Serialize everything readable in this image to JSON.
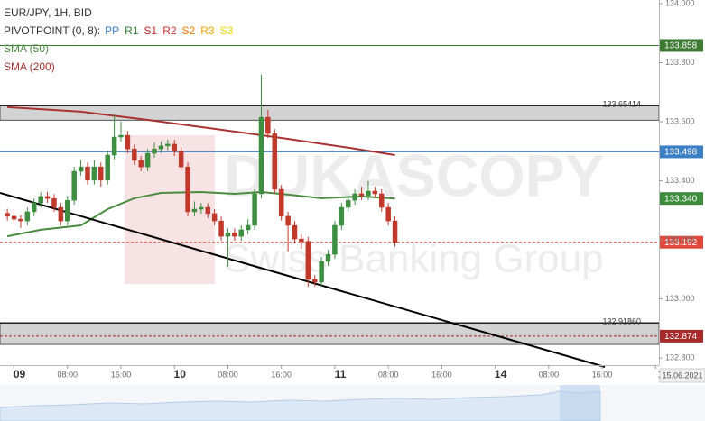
{
  "chart_data": {
    "type": "candlestick",
    "title": "EUR/JPY, 1H, BID",
    "indicator_label": "PIVOTPOINT (0, 8):",
    "pivot_legend": [
      {
        "name": "PP",
        "color": "#3b7fd4"
      },
      {
        "name": "R1",
        "color": "#2e7d32"
      },
      {
        "name": "S1",
        "color": "#c62828"
      },
      {
        "name": "R2",
        "color": "#d32f2f"
      },
      {
        "name": "S2",
        "color": "#ef7d00"
      },
      {
        "name": "R3",
        "color": "#f0a500"
      },
      {
        "name": "S3",
        "color": "#f2d600"
      }
    ],
    "watermark": [
      "DUKASCOPY",
      "Swiss Banking Group"
    ],
    "up_color": "#3e8e41",
    "down_color": "#c0392b",
    "x": [
      -1,
      0,
      1,
      2,
      3,
      4,
      5,
      6,
      7,
      8,
      9,
      10,
      11,
      12,
      13,
      14,
      15,
      16,
      17,
      18,
      19,
      20,
      21,
      22,
      23,
      24,
      25,
      26,
      27,
      28,
      29,
      30,
      31,
      32,
      33,
      34,
      35,
      36,
      37,
      38,
      39,
      40,
      41,
      42,
      43,
      44,
      45,
      46,
      47,
      48,
      49,
      50,
      51,
      52,
      53,
      54,
      55,
      56,
      57
    ],
    "open": [
      133.29,
      133.28,
      133.27,
      133.264,
      133.295,
      133.325,
      133.347,
      133.34,
      133.31,
      133.264,
      133.334,
      133.432,
      133.447,
      133.402,
      133.447,
      133.402,
      133.487,
      133.548,
      133.554,
      133.508,
      133.469,
      133.447,
      133.493,
      133.508,
      133.518,
      133.524,
      133.499,
      133.447,
      133.295,
      133.304,
      133.31,
      133.289,
      133.264,
      133.212,
      133.224,
      133.212,
      133.234,
      133.249,
      133.356,
      133.615,
      133.56,
      133.371,
      133.28,
      133.249,
      133.203,
      133.195,
      133.066,
      133.057,
      133.127,
      133.151,
      133.249,
      133.31,
      133.334,
      133.356,
      133.35,
      133.365,
      133.356,
      133.31,
      133.264
    ],
    "high": [
      133.305,
      133.295,
      133.285,
      133.31,
      133.34,
      133.362,
      133.362,
      133.355,
      133.325,
      133.349,
      133.447,
      133.47,
      133.462,
      133.47,
      133.462,
      133.502,
      133.621,
      133.6,
      133.569,
      133.523,
      133.484,
      133.508,
      133.53,
      133.533,
      133.539,
      133.539,
      133.514,
      133.462,
      133.33,
      133.325,
      133.325,
      133.304,
      133.279,
      133.239,
      133.239,
      133.249,
      133.27,
      133.371,
      133.759,
      133.64,
      133.575,
      133.386,
      133.295,
      133.264,
      133.218,
      133.21,
      133.081,
      133.142,
      133.166,
      133.264,
      133.325,
      133.349,
      133.371,
      133.38,
      133.4,
      133.38,
      133.371,
      133.325,
      133.279
    ],
    "low": [
      133.265,
      133.255,
      133.24,
      133.249,
      133.28,
      133.31,
      133.325,
      133.295,
      133.249,
      133.249,
      133.319,
      133.417,
      133.387,
      133.387,
      133.38,
      133.387,
      133.472,
      133.533,
      133.493,
      133.454,
      133.432,
      133.432,
      133.478,
      133.493,
      133.503,
      133.484,
      133.432,
      133.28,
      133.28,
      133.289,
      133.274,
      133.249,
      133.197,
      133.11,
      133.197,
      133.197,
      133.219,
      133.234,
      133.341,
      133.545,
      133.356,
      133.265,
      133.16,
      133.188,
      133.17,
      133.041,
      133.042,
      133.042,
      133.112,
      133.136,
      133.234,
      133.295,
      133.319,
      133.335,
      133.335,
      133.341,
      133.295,
      133.249,
      133.177
    ],
    "close": [
      133.28,
      133.27,
      133.264,
      133.295,
      133.325,
      133.347,
      133.34,
      133.31,
      133.264,
      133.334,
      133.432,
      133.447,
      133.402,
      133.447,
      133.402,
      133.487,
      133.548,
      133.554,
      133.508,
      133.469,
      133.447,
      133.493,
      133.508,
      133.518,
      133.524,
      133.499,
      133.447,
      133.295,
      133.304,
      133.31,
      133.289,
      133.264,
      133.212,
      133.224,
      133.212,
      133.234,
      133.249,
      133.356,
      133.615,
      133.56,
      133.371,
      133.28,
      133.249,
      133.203,
      133.195,
      133.066,
      133.057,
      133.127,
      133.151,
      133.249,
      133.31,
      133.334,
      133.356,
      133.35,
      133.365,
      133.356,
      133.31,
      133.264,
      133.192
    ],
    "series": [
      {
        "name": "SMA (50)",
        "color": "#4a8c3f",
        "x": [
          -1,
          4,
          10,
          14,
          18,
          22,
          28,
          33,
          37,
          41,
          46,
          52,
          57
        ],
        "values": [
          133.212,
          133.234,
          133.249,
          133.304,
          133.341,
          133.359,
          133.362,
          133.356,
          133.362,
          133.353,
          133.341,
          133.347,
          133.34
        ]
      },
      {
        "name": "SMA (200)",
        "color": "#a83232",
        "x": [
          -1,
          10,
          20,
          30,
          40,
          50,
          57
        ],
        "values": [
          133.649,
          133.634,
          133.606,
          133.576,
          133.545,
          133.512,
          133.487
        ]
      }
    ],
    "trendline": {
      "color": "#000000",
      "x": [
        -2.1,
        88.4
      ],
      "values": [
        133.359,
        132.77
      ]
    },
    "levels": [
      {
        "value": 133.858,
        "label": "133.858",
        "color": "#3d7a32",
        "style": "solid",
        "label_at": "axis"
      },
      {
        "value": 133.65414,
        "label": "133.65414",
        "color": "#222222",
        "style": "solid",
        "label_at": "inside",
        "band_to": 133.605
      },
      {
        "value": 133.498,
        "label": "133.498",
        "color": "#3b7fc4",
        "style": "solid",
        "label_at": "axis"
      },
      {
        "value": 133.34,
        "label": "133.340",
        "color": "#3d8b3d",
        "style": "none",
        "label_at": "axis"
      },
      {
        "value": 133.192,
        "label": "133.192",
        "color": "#e0483c",
        "style": "dashed",
        "label_at": "axis"
      },
      {
        "value": 132.9186,
        "label": "132.91860",
        "color": "#222222",
        "style": "solid",
        "label_at": "inside",
        "band_to": 132.846
      },
      {
        "value": 132.874,
        "label": "132.874",
        "color": "#a52a2a",
        "style": "dashed",
        "label_at": "axis"
      }
    ],
    "xlim": [
      -2.1,
      96.5
    ],
    "xticks": [
      {
        "value": 0,
        "label": "09"
      },
      {
        "value": 8,
        "label": "08:00"
      },
      {
        "value": 16,
        "label": "16:00"
      },
      {
        "value": 24,
        "label": "10"
      },
      {
        "value": 32,
        "label": "08:00"
      },
      {
        "value": 40,
        "label": "16:00"
      },
      {
        "value": 48,
        "label": "11"
      },
      {
        "value": 56,
        "label": "08:00"
      },
      {
        "value": 64,
        "label": "16:00"
      },
      {
        "value": 72,
        "label": "14"
      },
      {
        "value": 80,
        "label": "08:00"
      },
      {
        "value": 88,
        "label": "16:00"
      },
      {
        "value": 96,
        "label": "1"
      }
    ],
    "cursor_label": "15.06.2021",
    "ylim": [
      132.776,
      134.012
    ],
    "yticks": [
      {
        "value": 134,
        "label": "134.000"
      },
      {
        "value": 133.8,
        "label": "133.800"
      },
      {
        "value": 133.6,
        "label": "133.600"
      },
      {
        "value": 133.4,
        "label": "133.400"
      },
      {
        "value": 133.2,
        "label": "133.200"
      },
      {
        "value": 133,
        "label": "133.000"
      },
      {
        "value": 132.8,
        "label": "132.800"
      }
    ],
    "grid": false
  }
}
